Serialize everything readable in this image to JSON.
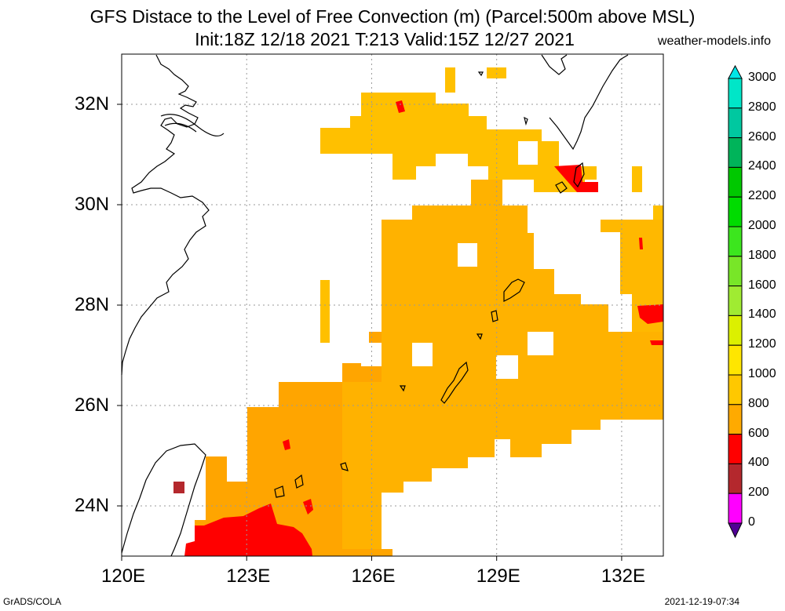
{
  "header": {
    "title_line1": "GFS Distace to the Level of Free Convection (m) (Parcel:500m above MSL)",
    "title_line2": "Init:18Z 12/18 2021 T:213 Valid:15Z 12/27 2021",
    "site": "weather-models.info"
  },
  "axes": {
    "x_ticks": [
      "120E",
      "123E",
      "126E",
      "129E",
      "132E"
    ],
    "y_ticks": [
      "32N",
      "30N",
      "28N",
      "26N",
      "24N"
    ]
  },
  "colorbar": {
    "labels": [
      "3000",
      "2800",
      "2600",
      "2400",
      "2200",
      "2000",
      "1800",
      "1600",
      "1400",
      "1200",
      "1000",
      "800",
      "600",
      "400",
      "200",
      "0"
    ],
    "colors": [
      "#00e6c8",
      "#00c8a0",
      "#00b45a",
      "#00c800",
      "#00dc00",
      "#3ce61e",
      "#78e628",
      "#a0eb32",
      "#dcf000",
      "#ffe600",
      "#ffc800",
      "#ffaa00",
      "#ff0000",
      "#b4282d",
      "#ff00ff",
      "#500096"
    ]
  },
  "footer": {
    "left": "GrADS/COLA",
    "right": "2021-12-19-07:34"
  },
  "map_data": {
    "lon_range": [
      120,
      133
    ],
    "lat_range": [
      23,
      33
    ],
    "field_colors": {
      "low": "#ffa500",
      "mid": "#ffb800",
      "high": "#ffc800",
      "red": "#ff0000",
      "brown": "#b4282d"
    }
  }
}
